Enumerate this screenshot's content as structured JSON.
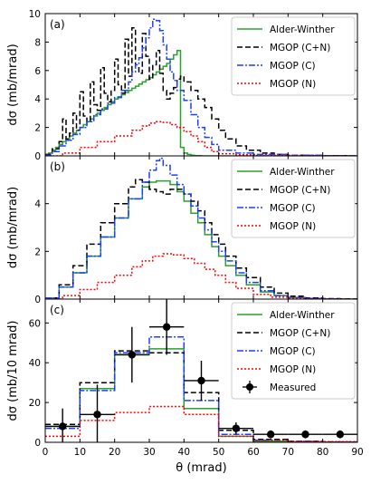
{
  "chart_data": [
    {
      "type": "line",
      "panel_label": "(a)",
      "ylabel": "dσ (mb/mrad)",
      "xlim": [
        0,
        90
      ],
      "ylim": [
        0,
        10
      ],
      "yticks": [
        0,
        2,
        4,
        6,
        8,
        10
      ],
      "legend_position": "top-right",
      "series": [
        {
          "name": "Alder-Winther",
          "color": "#2ca02c",
          "dash": "solid",
          "x": [
            0,
            1,
            2,
            3,
            4,
            5,
            6,
            7,
            8,
            9,
            10,
            11,
            12,
            13,
            14,
            15,
            16,
            17,
            18,
            19,
            20,
            21,
            22,
            23,
            24,
            25,
            26,
            27,
            28,
            29,
            30,
            31,
            32,
            33,
            34,
            35,
            36,
            37,
            38,
            39,
            40,
            41,
            42,
            43,
            44,
            45,
            50,
            60,
            70,
            80,
            90
          ],
          "y": [
            0.05,
            0.2,
            0.4,
            0.6,
            0.8,
            1.0,
            1.2,
            1.4,
            1.6,
            1.8,
            2.0,
            2.2,
            2.4,
            2.6,
            2.8,
            3.0,
            3.2,
            3.4,
            3.6,
            3.8,
            4.0,
            4.15,
            4.3,
            4.45,
            4.6,
            4.75,
            4.9,
            5.05,
            5.2,
            5.35,
            5.5,
            5.7,
            5.9,
            6.1,
            6.3,
            6.5,
            6.8,
            7.1,
            7.4,
            0.6,
            0.2,
            0.1,
            0.05,
            0.02,
            0.01,
            0,
            0,
            0,
            0,
            0,
            0
          ]
        },
        {
          "name": "MGOP (C+N)",
          "color": "#000000",
          "dash": "dashed",
          "x": [
            0,
            2,
            4,
            5,
            6,
            7,
            8,
            9,
            10,
            11,
            12,
            13,
            14,
            15,
            16,
            17,
            18,
            19,
            20,
            21,
            22,
            23,
            24,
            25,
            26,
            27,
            28,
            29,
            30,
            31,
            32,
            33,
            34,
            35,
            36,
            37,
            38,
            39,
            40,
            42,
            44,
            46,
            48,
            50,
            52,
            55,
            58,
            62,
            66,
            70,
            75,
            80,
            85,
            90
          ],
          "y": [
            0.1,
            0.5,
            1.0,
            2.6,
            1.2,
            1.6,
            3.0,
            1.8,
            4.5,
            2.8,
            2.4,
            5.2,
            3.6,
            3.2,
            6.2,
            4.4,
            3.8,
            4.6,
            6.8,
            5.0,
            4.4,
            8.2,
            5.6,
            9.0,
            6.2,
            5.8,
            8.6,
            7.0,
            5.4,
            6.4,
            7.4,
            5.8,
            4.6,
            4.0,
            4.4,
            4.8,
            5.4,
            5.6,
            5.2,
            4.6,
            4.0,
            3.4,
            2.6,
            1.8,
            1.2,
            0.7,
            0.4,
            0.2,
            0.1,
            0.05,
            0.03,
            0.02,
            0.01,
            0
          ]
        },
        {
          "name": "MGOP (C)",
          "color": "#1f3fff",
          "dash": "dashdot",
          "x": [
            0,
            2,
            4,
            6,
            8,
            10,
            12,
            14,
            16,
            18,
            20,
            22,
            24,
            25,
            26,
            27,
            28,
            29,
            30,
            31,
            32,
            33,
            34,
            35,
            36,
            37,
            38,
            40,
            42,
            44,
            46,
            48,
            50,
            55,
            60,
            70,
            80,
            90
          ],
          "y": [
            0.05,
            0.3,
            0.7,
            1.1,
            1.5,
            2.0,
            2.4,
            2.9,
            3.3,
            3.7,
            4.1,
            4.6,
            5.2,
            5.9,
            6.4,
            6.9,
            7.6,
            8.3,
            9.0,
            9.6,
            9.5,
            8.8,
            7.8,
            6.8,
            5.9,
            5.3,
            4.6,
            3.9,
            2.9,
            2.0,
            1.3,
            0.8,
            0.4,
            0.2,
            0.1,
            0.05,
            0.01,
            0
          ]
        },
        {
          "name": "MGOP (N)",
          "color": "#ff0000",
          "dash": "dotted",
          "x": [
            0,
            5,
            10,
            15,
            20,
            25,
            28,
            30,
            32,
            34,
            36,
            38,
            40,
            42,
            44,
            46,
            48,
            50,
            55,
            60,
            70,
            80,
            90
          ],
          "y": [
            0,
            0.2,
            0.6,
            1.0,
            1.4,
            1.8,
            2.1,
            2.3,
            2.4,
            2.35,
            2.2,
            2.0,
            1.7,
            1.4,
            1.0,
            0.6,
            0.3,
            0.15,
            0.08,
            0.03,
            0.01,
            0,
            0
          ]
        }
      ]
    },
    {
      "type": "line",
      "panel_label": "(b)",
      "ylabel": "dσ (mb/mrad)",
      "xlim": [
        0,
        90
      ],
      "ylim": [
        0,
        6
      ],
      "yticks": [
        0,
        2,
        4
      ],
      "legend_position": "top-right",
      "series": [
        {
          "name": "Alder-Winther",
          "color": "#2ca02c",
          "dash": "solid",
          "x": [
            0,
            4,
            8,
            12,
            16,
            20,
            24,
            28,
            30,
            32,
            34,
            36,
            38,
            40,
            42,
            44,
            46,
            48,
            50,
            52,
            55,
            58,
            62,
            66,
            70,
            75,
            80,
            85,
            90
          ],
          "y": [
            0.05,
            0.5,
            1.1,
            1.8,
            2.6,
            3.4,
            4.2,
            4.7,
            4.9,
            4.95,
            4.95,
            4.8,
            4.5,
            4.1,
            3.6,
            3.2,
            2.7,
            2.2,
            1.8,
            1.4,
            1.0,
            0.6,
            0.3,
            0.15,
            0.07,
            0.03,
            0.01,
            0,
            0
          ]
        },
        {
          "name": "MGOP (C+N)",
          "color": "#000000",
          "dash": "dashed",
          "x": [
            0,
            4,
            8,
            12,
            16,
            20,
            24,
            26,
            28,
            30,
            32,
            34,
            36,
            38,
            40,
            42,
            44,
            46,
            48,
            50,
            52,
            55,
            58,
            62,
            66,
            70,
            75,
            80,
            85,
            90
          ],
          "y": [
            0.05,
            0.6,
            1.4,
            2.3,
            3.2,
            4.0,
            4.7,
            5.0,
            4.9,
            4.6,
            4.5,
            4.4,
            4.6,
            4.6,
            4.4,
            4.1,
            3.7,
            3.2,
            2.7,
            2.3,
            1.8,
            1.3,
            0.9,
            0.5,
            0.25,
            0.12,
            0.05,
            0.02,
            0.01,
            0
          ]
        },
        {
          "name": "MGOP (C)",
          "color": "#1f3fff",
          "dash": "dashdot",
          "x": [
            0,
            4,
            8,
            12,
            16,
            20,
            24,
            28,
            30,
            32,
            33,
            34,
            36,
            38,
            40,
            42,
            44,
            46,
            48,
            50,
            52,
            55,
            58,
            62,
            66,
            70,
            75,
            80,
            85,
            90
          ],
          "y": [
            0.05,
            0.5,
            1.1,
            1.8,
            2.6,
            3.4,
            4.2,
            4.9,
            5.4,
            5.8,
            5.9,
            5.6,
            5.2,
            4.8,
            4.4,
            3.9,
            3.4,
            2.9,
            2.4,
            2.0,
            1.6,
            1.1,
            0.7,
            0.35,
            0.15,
            0.07,
            0.03,
            0.01,
            0,
            0
          ]
        },
        {
          "name": "MGOP (N)",
          "color": "#ff0000",
          "dash": "dotted",
          "x": [
            0,
            5,
            10,
            15,
            20,
            25,
            28,
            31,
            34,
            37,
            40,
            43,
            46,
            49,
            52,
            55,
            60,
            65,
            70,
            75,
            80,
            90
          ],
          "y": [
            0,
            0.15,
            0.4,
            0.7,
            1.0,
            1.35,
            1.6,
            1.8,
            1.9,
            1.85,
            1.7,
            1.5,
            1.25,
            1.0,
            0.7,
            0.45,
            0.2,
            0.08,
            0.03,
            0.01,
            0,
            0
          ]
        }
      ]
    },
    {
      "type": "line",
      "panel_label": "(c)",
      "ylabel": "dσ (mb/10 mrad)",
      "xlabel": "θ (mrad)",
      "xlim": [
        0,
        90
      ],
      "ylim": [
        0,
        72
      ],
      "yticks": [
        0,
        20,
        40,
        60
      ],
      "xticks": [
        0,
        10,
        20,
        30,
        40,
        50,
        60,
        70,
        80,
        90
      ],
      "legend_position": "top-right",
      "bin_edges": [
        0,
        10,
        20,
        30,
        40,
        50,
        60,
        70,
        80,
        90
      ],
      "series": [
        {
          "name": "Alder-Winther",
          "color": "#2ca02c",
          "dash": "solid",
          "values": [
            8,
            27,
            44,
            47,
            17,
            3,
            0.5,
            0.2,
            0.1
          ]
        },
        {
          "name": "MGOP (C+N)",
          "color": "#000000",
          "dash": "dashed",
          "values": [
            9,
            30,
            46,
            45,
            25,
            6,
            1.5,
            0.5,
            0.2
          ]
        },
        {
          "name": "MGOP (C)",
          "color": "#1f3fff",
          "dash": "dashdot",
          "values": [
            7,
            26,
            45,
            53,
            21,
            4,
            1.0,
            0.3,
            0.1
          ]
        },
        {
          "name": "MGOP (N)",
          "color": "#ff0000",
          "dash": "dotted",
          "values": [
            3,
            11,
            15,
            18,
            14,
            3,
            1.0,
            0.5,
            0.3
          ]
        }
      ],
      "measured": {
        "name": "Measured",
        "x": [
          5,
          15,
          25,
          35,
          45,
          55,
          65,
          75,
          85
        ],
        "y": [
          8,
          14,
          44,
          58,
          31,
          7,
          4,
          4,
          4
        ],
        "yerr": [
          9,
          15,
          14,
          14,
          10,
          3,
          2,
          2,
          2
        ],
        "xerr": 5
      }
    }
  ]
}
